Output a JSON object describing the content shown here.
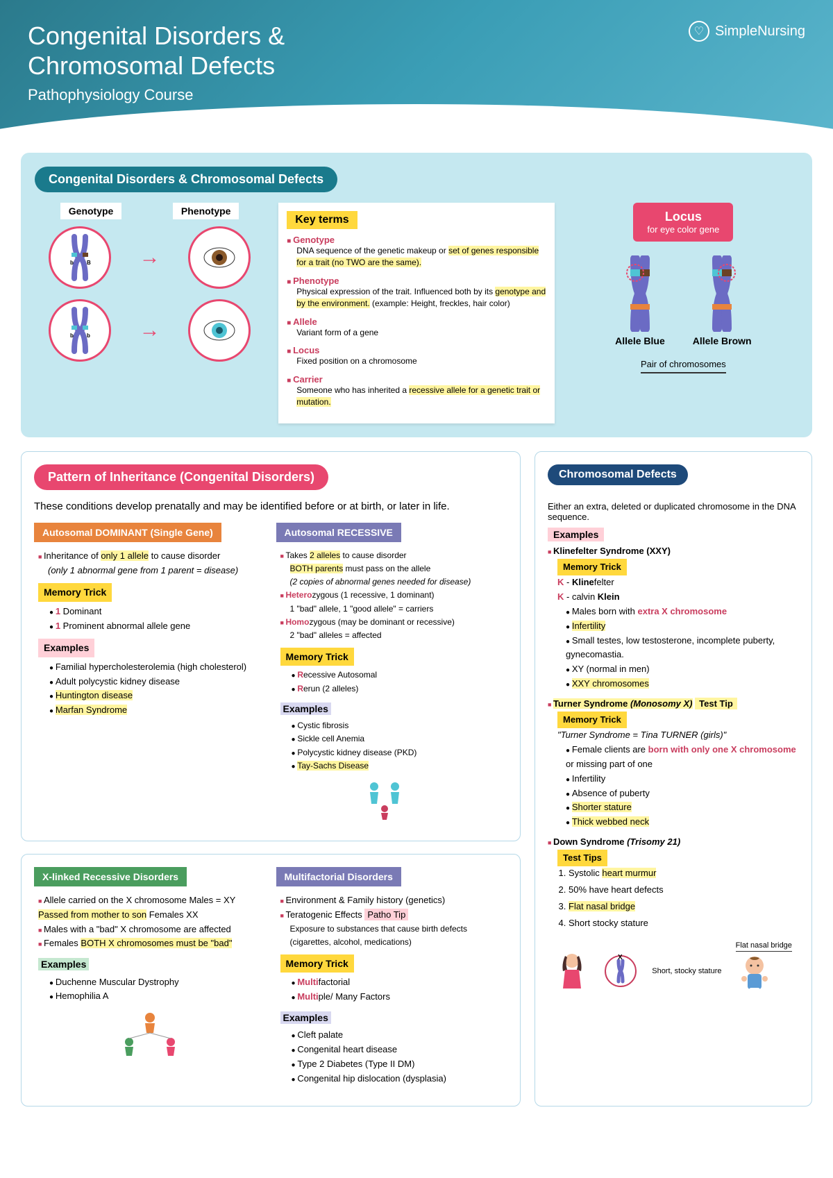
{
  "header": {
    "title_line1": "Congenital Disorders &",
    "title_line2": "Chromosomal Defects",
    "subtitle": "Pathophysiology Course",
    "brand": "SimpleNursing"
  },
  "top_section": {
    "pill": "Congenital Disorders & Chromosomal Defects",
    "geno_label": "Genotype",
    "pheno_label": "Phenotype",
    "key_terms_title": "Key terms",
    "terms": [
      {
        "name": "Genotype",
        "desc_pre": "DNA sequence of the genetic makeup or ",
        "desc_hl": "set of genes responsible for a trait (no TWO are the same).",
        "desc_post": ""
      },
      {
        "name": "Phenotype",
        "desc_pre": "Physical expression of the trait. Influenced both by its ",
        "desc_hl": "genotype and by the environment.",
        "desc_post": " (example: Height, freckles, hair color)"
      },
      {
        "name": "Allele",
        "desc_pre": "Variant form of a gene",
        "desc_hl": "",
        "desc_post": ""
      },
      {
        "name": "Locus",
        "desc_pre": "Fixed position on a chromosome",
        "desc_hl": "",
        "desc_post": ""
      },
      {
        "name": "Carrier",
        "desc_pre": "Someone who has inherited a ",
        "desc_hl": "recessive allele for a genetic trait or mutation.",
        "desc_post": ""
      }
    ],
    "locus_title": "Locus",
    "locus_sub": "for eye color gene",
    "allele_blue": "Allele Blue",
    "allele_brown": "Allele Brown",
    "pair_label": "Pair of chromosomes"
  },
  "inheritance": {
    "pill": "Pattern of Inheritance (Congenital Disorders)",
    "intro": "These conditions develop prenatally and may be identified before or at birth, or later in life.",
    "dominant": {
      "header": "Autosomal DOMINANT (Single Gene)",
      "bullet1_pre": "Inheritance of ",
      "bullet1_hl": "only 1 allele",
      "bullet1_post": " to cause disorder",
      "bullet1_italic": "(only 1 abnormal gene from 1 parent = disease)",
      "memory_label": "Memory Trick",
      "m1_red": "1",
      "m1_text": " Dominant",
      "m2_red": "1",
      "m2_text": " Prominent abnormal allele gene",
      "examples_label": "Examples",
      "ex1": "Familial hypercholesterolemia (high cholesterol)",
      "ex2": "Adult polycystic kidney disease",
      "ex3": "Huntington disease",
      "ex4": "Marfan Syndrome"
    },
    "recessive": {
      "header": "Autosomal RECESSIVE",
      "b1_pre": "Takes ",
      "b1_hl": "2 alleles",
      "b1_post": " to cause disorder",
      "b1b_hl": "BOTH parents",
      "b1b_post": " must pass on the allele",
      "b1_italic": "(2 copies of abnormal genes needed for disease)",
      "b2_red": "Hetero",
      "b2_post": "zygous  (1 recessive, 1 dominant)",
      "b2_line2": "1 \"bad\" allele, 1 \"good allele\" = carriers",
      "b3_red": "Homo",
      "b3_post": "zygous  (may be dominant or recessive)",
      "b3_line2": "2 \"bad\" alleles = affected",
      "memory_label": "Memory Trick",
      "m1_red": "R",
      "m1_text": "ecessive Autosomal",
      "m2_red": "R",
      "m2_text": "erun (2 alleles)",
      "examples_label": "Examples",
      "ex1": "Cystic fibrosis",
      "ex2": "Sickle cell Anemia",
      "ex3": "Polycystic kidney disease (PKD)",
      "ex4": "Tay-Sachs Disease"
    },
    "xlinked": {
      "header": "X-linked Recessive Disorders",
      "b1_pre": "Allele carried on the X chromosome Males = XY ",
      "b1_hl": "Passed from mother to son",
      "b1_post": " Females XX",
      "b2": "Males with a \"bad\" X chromosome are affected",
      "b3_pre": "Females ",
      "b3_hl": "BOTH X chromosomes must be \"bad\"",
      "examples_label": "Examples",
      "ex1": "Duchenne Muscular Dystrophy",
      "ex2": "Hemophilia A"
    },
    "multi": {
      "header": "Multifactorial Disorders",
      "b1": "Environment & Family history (genetics)",
      "b2_pre": "Teratogenic Effects  ",
      "b2_badge": "Patho Tip",
      "b2_desc": "Exposure to substances that cause birth defects (cigarettes, alcohol, medications)",
      "memory_label": "Memory Trick",
      "m1_red": "Multi",
      "m1_text": "factorial",
      "m2_red": "Multi",
      "m2_text": "ple/ Many Factors",
      "examples_label": "Examples",
      "ex1": "Cleft palate",
      "ex2": "Congenital heart disease",
      "ex3": "Type 2 Diabetes (Type II DM)",
      "ex4": "Congenital hip dislocation (dysplasia)"
    }
  },
  "defects": {
    "pill": "Chromosomal Defects",
    "intro": "Either an extra, deleted or duplicated chromosome in the DNA sequence.",
    "examples_label": "Examples",
    "klein": {
      "title": "Klinefelter Syndrome (XXY)",
      "memory_label": "Memory Trick",
      "k1_red": "K",
      "k1_pre": " - ",
      "k1_bold": "Kline",
      "k1_post": "felter",
      "k2_red": "K",
      "k2_pre": " - calvin ",
      "k2_bold": "Klein",
      "b1_pre": "Males born with ",
      "b1_red": "extra X chromosome",
      "b2": "Infertility",
      "b3": "Small testes, low testosterone, incomplete puberty, gynecomastia.",
      "b4": "XY (normal in men)",
      "b5": "XXY chromosomes"
    },
    "turner": {
      "title_pre": "Turner Syndrome ",
      "title_italic": "(Monosomy X)",
      "test_badge": "Test Tip",
      "memory_label": "Memory Trick",
      "quote": "\"Turner Syndrome = Tina TURNER (girls)\"",
      "b1_pre": "Female clients are ",
      "b1_red": "born with only one X chromosome",
      "b1_post": " or missing part of one",
      "b2": "Infertility",
      "b3": "Absence of puberty",
      "b4": "Shorter stature",
      "b5": "Thick webbed neck"
    },
    "down": {
      "title_pre": "Down Syndrome ",
      "title_italic": "(Trisomy 21)",
      "test_label": "Test Tips",
      "t1_pre": "Systolic ",
      "t1_hl": "heart murmur",
      "t2": "50% have heart defects",
      "t3": "Flat nasal bridge",
      "t4": "Short stocky stature"
    },
    "illus": {
      "flat_bridge": "Flat nasal bridge",
      "short_stocky": "Short, stocky stature"
    }
  },
  "colors": {
    "teal_dark": "#1a7a8c",
    "pink": "#e8476f",
    "navy": "#1e4a7a",
    "orange": "#e8843d",
    "purple": "#7a7ab5",
    "green": "#4a9d5e",
    "yellow": "#ffd83d",
    "hl_yellow": "#fff5a0",
    "red_text": "#c93d5e",
    "bg_light_blue": "#c5e8f0"
  }
}
